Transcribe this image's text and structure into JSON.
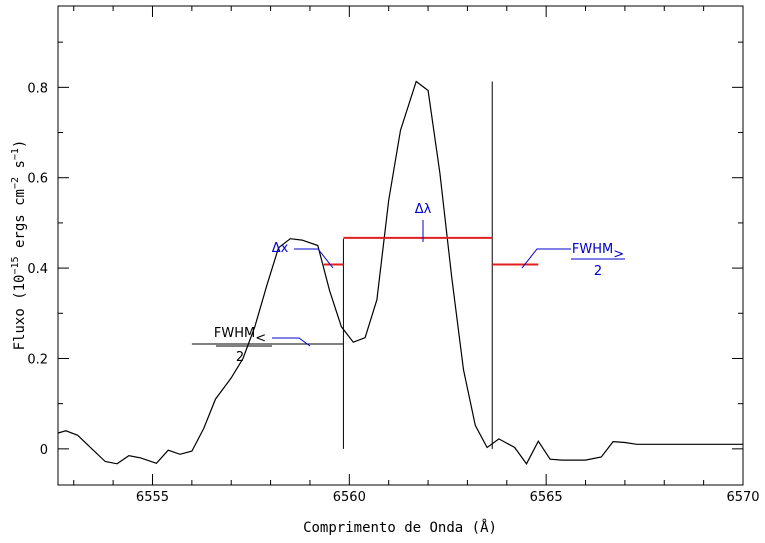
{
  "chart_data": {
    "type": "line",
    "title": "",
    "xlabel": "Comprimento de Onda (Å)",
    "ylabel": "Fluxo (10",
    "ylabel_exp1": "−15",
    "ylabel_mid": " ergs cm",
    "ylabel_exp2": "−2",
    "ylabel_mid2": " s",
    "ylabel_exp3": "−1",
    "ylabel_end": ")",
    "xlim": [
      6552.6,
      6570
    ],
    "ylim": [
      -0.08,
      0.98
    ],
    "xticks": [
      6555,
      6560,
      6565,
      6570
    ],
    "xtick_labels": [
      "6555",
      "6560",
      "6565",
      "6570"
    ],
    "yticks": [
      0,
      0.2,
      0.4,
      0.6,
      0.8
    ],
    "ytick_labels": [
      "0",
      "0.2",
      "0.4",
      "0.6",
      "0.8"
    ],
    "grid": false,
    "line_color": "#000000",
    "marker_color": "#e02020",
    "annotation_color": "#0000cc",
    "series": [
      {
        "x": [
          6552.6,
          6552.8,
          6553.1,
          6553.4,
          6553.8,
          6554.1,
          6554.4,
          6554.7,
          6555.1,
          6555.4,
          6555.7,
          6556.0,
          6556.3,
          6556.6,
          6557.0,
          6557.3,
          6557.6,
          6557.9,
          6558.2,
          6558.5,
          6558.8,
          6559.2,
          6559.5,
          6559.8,
          6560.1,
          6560.4,
          6560.7,
          6561.0,
          6561.3,
          6561.7,
          6562.0,
          6562.3,
          6562.6,
          6562.9,
          6563.2,
          6563.5,
          6563.8,
          6564.2,
          6564.5,
          6564.8,
          6565.1,
          6565.4,
          6565.7,
          6566.0,
          6566.4,
          6566.7,
          6567.0,
          6567.3,
          6567.6,
          6568.0,
          6568.3,
          6568.6,
          6568.9,
          6569.2,
          6569.5,
          6569.9,
          6570.0
        ],
        "y": [
          0.035,
          0.04,
          0.03,
          0.005,
          -0.028,
          -0.033,
          -0.015,
          -0.02,
          -0.032,
          -0.003,
          -0.012,
          -0.005,
          0.045,
          0.11,
          0.157,
          0.2,
          0.27,
          0.36,
          0.445,
          0.465,
          0.462,
          0.45,
          0.35,
          0.27,
          0.236,
          0.246,
          0.33,
          0.55,
          0.705,
          0.813,
          0.793,
          0.61,
          0.38,
          0.175,
          0.052,
          0.003,
          0.022,
          0.003,
          -0.033,
          0.017,
          -0.023,
          -0.025,
          -0.025,
          -0.025,
          -0.018,
          0.016,
          0.014,
          0.01,
          0.01,
          0.01,
          0.01,
          0.01,
          0.01,
          0.01,
          0.01,
          0.01,
          0.01
        ]
      }
    ],
    "vlines": [
      {
        "x": 6559.85,
        "y0": 0,
        "y1": 0.465
      },
      {
        "x": 6563.63,
        "y0": 0,
        "y1": 0.813
      }
    ],
    "red_segments": [
      {
        "x0": 6559.85,
        "x1": 6563.63,
        "y": 0.467
      },
      {
        "x0": 6559.35,
        "x1": 6559.85,
        "y": 0.408
      },
      {
        "x0": 6563.63,
        "x1": 6564.8,
        "y": 0.408
      }
    ],
    "black_segment": {
      "x0": 6556.0,
      "x1": 6559.85,
      "y": 0.232
    },
    "annotations": {
      "delta_lambda": "Δλ",
      "delta_x": "Δx",
      "fwhm_left": "FWHM",
      "fwhm_left_sub": "<",
      "fwhm_right": "FWHM",
      "fwhm_right_sub": ">",
      "two": "2"
    }
  }
}
